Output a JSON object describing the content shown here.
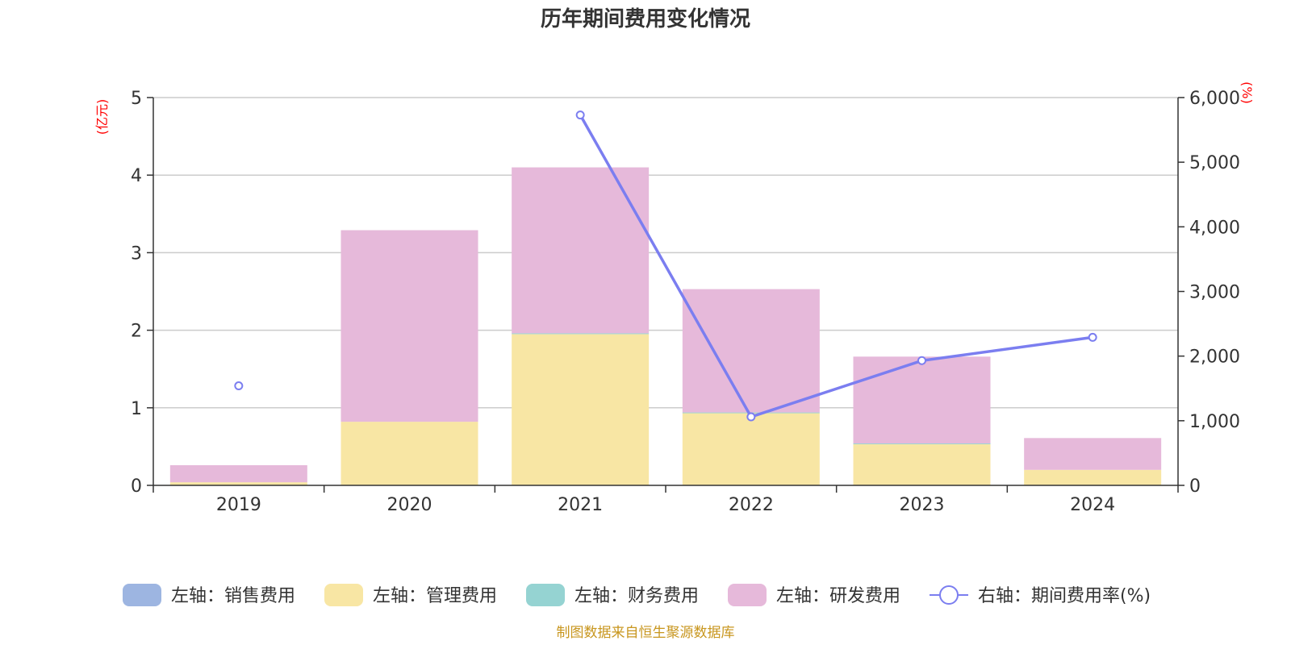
{
  "chart_data": {
    "type": "bar",
    "title": "历年期间费用变化情况",
    "categories": [
      "2019",
      "2020",
      "2021",
      "2022",
      "2023",
      "2024"
    ],
    "left_axis": {
      "unit": "(亿元)",
      "ylim": [
        0,
        5
      ],
      "ticks": [
        "0",
        "1",
        "2",
        "3",
        "4",
        "5"
      ]
    },
    "right_axis": {
      "unit": "(%)",
      "ylim": [
        0,
        6000
      ],
      "ticks": [
        "0",
        "1,000",
        "2,000",
        "3,000",
        "4,000",
        "5,000",
        "6,000"
      ]
    },
    "series": [
      {
        "name": "左轴：销售费用",
        "type": "bar",
        "axis": "left",
        "stack": true,
        "color": "#9db5e1",
        "values": [
          0,
          0,
          0,
          0,
          0,
          0
        ]
      },
      {
        "name": "左轴：管理费用",
        "type": "bar",
        "axis": "left",
        "stack": true,
        "color": "#f8e6a4",
        "values": [
          0.04,
          0.82,
          1.95,
          0.93,
          0.53,
          0.2
        ]
      },
      {
        "name": "左轴：财务费用",
        "type": "bar",
        "axis": "left",
        "stack": true,
        "color": "#95d3d2",
        "values": [
          0,
          0,
          0.01,
          0.01,
          0.01,
          0
        ]
      },
      {
        "name": "左轴：研发费用",
        "type": "bar",
        "axis": "left",
        "stack": true,
        "color": "#e6b9da",
        "values": [
          0.22,
          2.47,
          2.14,
          1.59,
          1.12,
          0.41
        ]
      },
      {
        "name": "右轴：期间费用率(%)",
        "type": "line",
        "axis": "right",
        "color": "#7b7ef0",
        "values": [
          1540,
          null,
          5730,
          1060,
          1930,
          2290
        ]
      }
    ],
    "grid": true,
    "legend_position": "bottom"
  },
  "source_text": "制图数据来自恒生聚源数据库"
}
